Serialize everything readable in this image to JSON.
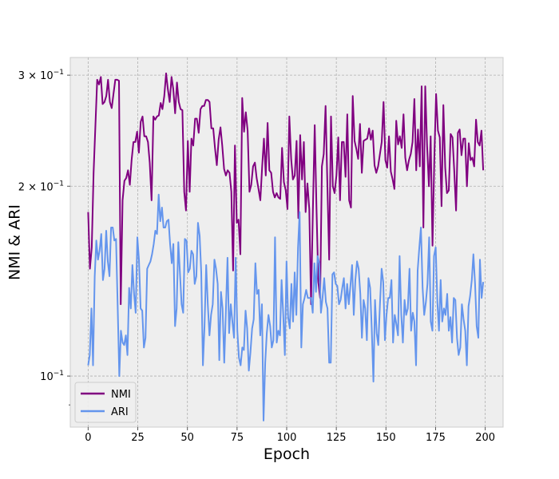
{
  "chart_data": {
    "type": "line",
    "title": "",
    "xlabel": "Epoch",
    "ylabel": "NMI & ARI",
    "xlim": [
      -9,
      209
    ],
    "ylim": [
      0.083,
      0.32
    ],
    "yscale": "log",
    "x_ticks": [
      0,
      25,
      50,
      75,
      100,
      125,
      150,
      175,
      200
    ],
    "x_tick_labels": [
      "0",
      "25",
      "50",
      "75",
      "100",
      "125",
      "150",
      "175",
      "200"
    ],
    "y_major_ticks": [
      0.1,
      0.2,
      0.3
    ],
    "y_tick_labels": [
      {
        "base": "10",
        "exp": "−1",
        "coef": ""
      },
      {
        "base": "10",
        "exp": "−1",
        "coef": "2 × "
      },
      {
        "base": "10",
        "exp": "−1",
        "coef": "3 × "
      }
    ],
    "y_minor_ticks": [
      0.09
    ],
    "grid": true,
    "legend_position": "lower-left",
    "background": "#eeeeee",
    "series": [
      {
        "name": "NMI",
        "color": "#800080",
        "values": [
          0.182,
          0.148,
          0.16,
          0.21,
          0.25,
          0.295,
          0.29,
          0.298,
          0.27,
          0.272,
          0.278,
          0.295,
          0.272,
          0.266,
          0.28,
          0.295,
          0.295,
          0.294,
          0.13,
          0.19,
          0.204,
          0.206,
          0.212,
          0.201,
          0.22,
          0.235,
          0.235,
          0.244,
          0.226,
          0.253,
          0.258,
          0.24,
          0.24,
          0.235,
          0.218,
          0.19,
          0.258,
          0.255,
          0.258,
          0.259,
          0.271,
          0.265,
          0.278,
          0.302,
          0.285,
          0.272,
          0.298,
          0.285,
          0.261,
          0.292,
          0.272,
          0.265,
          0.264,
          0.196,
          0.183,
          0.236,
          0.196,
          0.238,
          0.232,
          0.256,
          0.256,
          0.243,
          0.265,
          0.268,
          0.268,
          0.274,
          0.274,
          0.272,
          0.247,
          0.247,
          0.23,
          0.216,
          0.237,
          0.248,
          0.232,
          0.213,
          0.208,
          0.212,
          0.21,
          0.196,
          0.147,
          0.232,
          0.175,
          0.177,
          0.156,
          0.276,
          0.244,
          0.262,
          0.245,
          0.196,
          0.201,
          0.215,
          0.218,
          0.206,
          0.198,
          0.19,
          0.215,
          0.238,
          0.208,
          0.252,
          0.212,
          0.21,
          0.196,
          0.192,
          0.195,
          0.192,
          0.191,
          0.23,
          0.203,
          0.197,
          0.184,
          0.258,
          0.221,
          0.205,
          0.208,
          0.236,
          0.178,
          0.241,
          0.205,
          0.235,
          0.182,
          0.202,
          0.184,
          0.13,
          0.183,
          0.25,
          0.185,
          0.141,
          0.133,
          0.215,
          0.225,
          0.268,
          0.2,
          0.153,
          0.258,
          0.2,
          0.195,
          0.208,
          0.239,
          0.19,
          0.235,
          0.235,
          0.207,
          0.26,
          0.19,
          0.185,
          0.278,
          0.236,
          0.229,
          0.221,
          0.251,
          0.21,
          0.236,
          0.237,
          0.238,
          0.247,
          0.237,
          0.245,
          0.216,
          0.21,
          0.215,
          0.225,
          0.235,
          0.272,
          0.22,
          0.214,
          0.24,
          0.211,
          0.205,
          0.198,
          0.254,
          0.233,
          0.24,
          0.23,
          0.26,
          0.222,
          0.212,
          0.22,
          0.225,
          0.235,
          0.275,
          0.212,
          0.246,
          0.215,
          0.288,
          0.172,
          0.288,
          0.232,
          0.2,
          0.24,
          0.161,
          0.222,
          0.28,
          0.245,
          0.239,
          0.186,
          0.269,
          0.214,
          0.195,
          0.197,
          0.242,
          0.239,
          0.212,
          0.183,
          0.243,
          0.246,
          0.224,
          0.238,
          0.238,
          0.2,
          0.234,
          0.22,
          0.222,
          0.215,
          0.255,
          0.235,
          0.232,
          0.245,
          0.212
        ]
      },
      {
        "name": "ARI",
        "color": "#6495ed",
        "values": [
          0.104,
          0.108,
          0.128,
          0.104,
          0.144,
          0.164,
          0.153,
          0.158,
          0.168,
          0.142,
          0.148,
          0.17,
          0.152,
          0.144,
          0.172,
          0.172,
          0.164,
          0.165,
          0.13,
          0.1,
          0.118,
          0.113,
          0.112,
          0.116,
          0.108,
          0.138,
          0.128,
          0.15,
          0.135,
          0.126,
          0.166,
          0.153,
          0.128,
          0.127,
          0.111,
          0.115,
          0.148,
          0.15,
          0.152,
          0.156,
          0.162,
          0.17,
          0.168,
          0.194,
          0.176,
          0.185,
          0.172,
          0.172,
          0.176,
          0.177,
          0.162,
          0.151,
          0.162,
          0.12,
          0.128,
          0.163,
          0.146,
          0.13,
          0.126,
          0.165,
          0.164,
          0.146,
          0.148,
          0.158,
          0.156,
          0.14,
          0.144,
          0.175,
          0.167,
          0.146,
          0.104,
          0.12,
          0.15,
          0.13,
          0.116,
          0.125,
          0.13,
          0.153,
          0.148,
          0.14,
          0.106,
          0.136,
          0.128,
          0.105,
          0.126,
          0.154,
          0.117,
          0.13,
          0.122,
          0.115,
          0.154,
          0.118,
          0.107,
          0.104,
          0.111,
          0.11,
          0.127,
          0.119,
          0.102,
          0.109,
          0.119,
          0.123,
          0.151,
          0.135,
          0.137,
          0.116,
          0.13,
          0.085,
          0.105,
          0.117,
          0.125,
          0.12,
          0.111,
          0.114,
          0.166,
          0.113,
          0.118,
          0.116,
          0.142,
          0.125,
          0.108,
          0.152,
          0.124,
          0.119,
          0.14,
          0.122,
          0.146,
          0.125,
          0.16,
          0.182,
          0.111,
          0.13,
          0.133,
          0.137,
          0.133,
          0.133,
          0.133,
          0.126,
          0.151,
          0.136,
          0.155,
          0.151,
          0.126,
          0.133,
          0.143,
          0.131,
          0.128,
          0.105,
          0.105,
          0.145,
          0.146,
          0.14,
          0.139,
          0.13,
          0.132,
          0.138,
          0.143,
          0.128,
          0.14,
          0.13,
          0.139,
          0.15,
          0.125,
          0.142,
          0.152,
          0.148,
          0.135,
          0.115,
          0.132,
          0.128,
          0.114,
          0.143,
          0.138,
          0.119,
          0.098,
          0.132,
          0.117,
          0.112,
          0.13,
          0.148,
          0.141,
          0.114,
          0.125,
          0.133,
          0.133,
          0.142,
          0.113,
          0.125,
          0.121,
          0.116,
          0.155,
          0.125,
          0.113,
          0.132,
          0.125,
          0.128,
          0.148,
          0.118,
          0.126,
          0.122,
          0.104,
          0.147,
          0.16,
          0.172,
          0.138,
          0.125,
          0.131,
          0.14,
          0.166,
          0.122,
          0.118,
          0.155,
          0.16,
          0.131,
          0.118,
          0.142,
          0.122,
          0.128,
          0.125,
          0.135,
          0.118,
          0.124,
          0.113,
          0.133,
          0.132,
          0.115,
          0.108,
          0.111,
          0.13,
          0.123,
          0.118,
          0.104,
          0.129,
          0.134,
          0.142,
          0.156,
          0.14,
          0.12,
          0.115,
          0.153,
          0.133,
          0.141
        ]
      }
    ]
  }
}
